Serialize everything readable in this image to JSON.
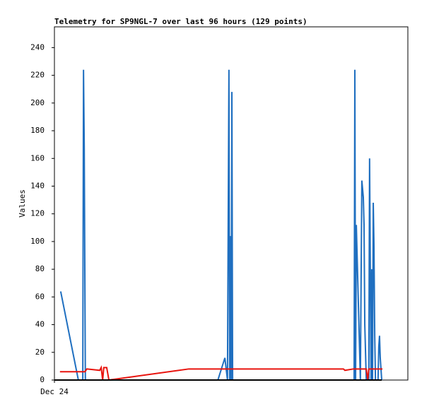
{
  "chart_data": {
    "type": "line",
    "title": "Telemetry for SP9NGL-7 over last 96 hours (129 points)",
    "y_label": "Values",
    "xlim": [
      0,
      96
    ],
    "xticks": [
      {
        "value": 0,
        "label": "Dec 24"
      }
    ],
    "ylim": [
      0,
      255
    ],
    "yticks": [
      0,
      20,
      40,
      60,
      80,
      100,
      120,
      140,
      160,
      180,
      200,
      220,
      240
    ],
    "series": [
      {
        "color": "#000000",
        "x": [
          0,
          88.9
        ],
        "values": [
          0,
          0
        ]
      },
      {
        "color": "#1f6fc0",
        "x": [
          1.7,
          6.5,
          7.7,
          7.9,
          8.1,
          8.3,
          8.4,
          44.4,
          46.3,
          47.0,
          47.2,
          47.4,
          47.6,
          47.8,
          48.0,
          48.2,
          48.4,
          81.4,
          81.6,
          81.8,
          82.0,
          83.1,
          83.3,
          83.5,
          83.9,
          84.1,
          84.3,
          84.7,
          85.4,
          85.6,
          85.8,
          86.0,
          86.2,
          86.4,
          86.6,
          86.8,
          87.0,
          87.2,
          87.9,
          88.1,
          88.3,
          88.5,
          88.9
        ],
        "values": [
          64,
          0,
          0,
          224,
          168,
          56,
          0,
          0,
          16,
          0,
          112,
          224,
          0,
          104,
          0,
          208,
          0,
          0,
          224,
          0,
          112,
          0,
          72,
          144,
          132,
          112,
          40,
          0,
          0,
          160,
          80,
          0,
          80,
          0,
          128,
          96,
          32,
          0,
          0,
          24,
          32,
          16,
          0
        ]
      },
      {
        "color": "#e8140e",
        "x": [
          1.5,
          8.3,
          8.8,
          12.3,
          12.7,
          13.1,
          13.4,
          14.2,
          14.8,
          36.5,
          42.8,
          78.5,
          78.9,
          81.2,
          84.7,
          85.1,
          85.4,
          89.1
        ],
        "values": [
          6,
          6,
          8,
          7,
          9,
          0,
          9,
          9,
          0,
          8,
          8,
          8,
          7,
          8,
          8,
          0,
          8,
          8
        ]
      }
    ]
  }
}
